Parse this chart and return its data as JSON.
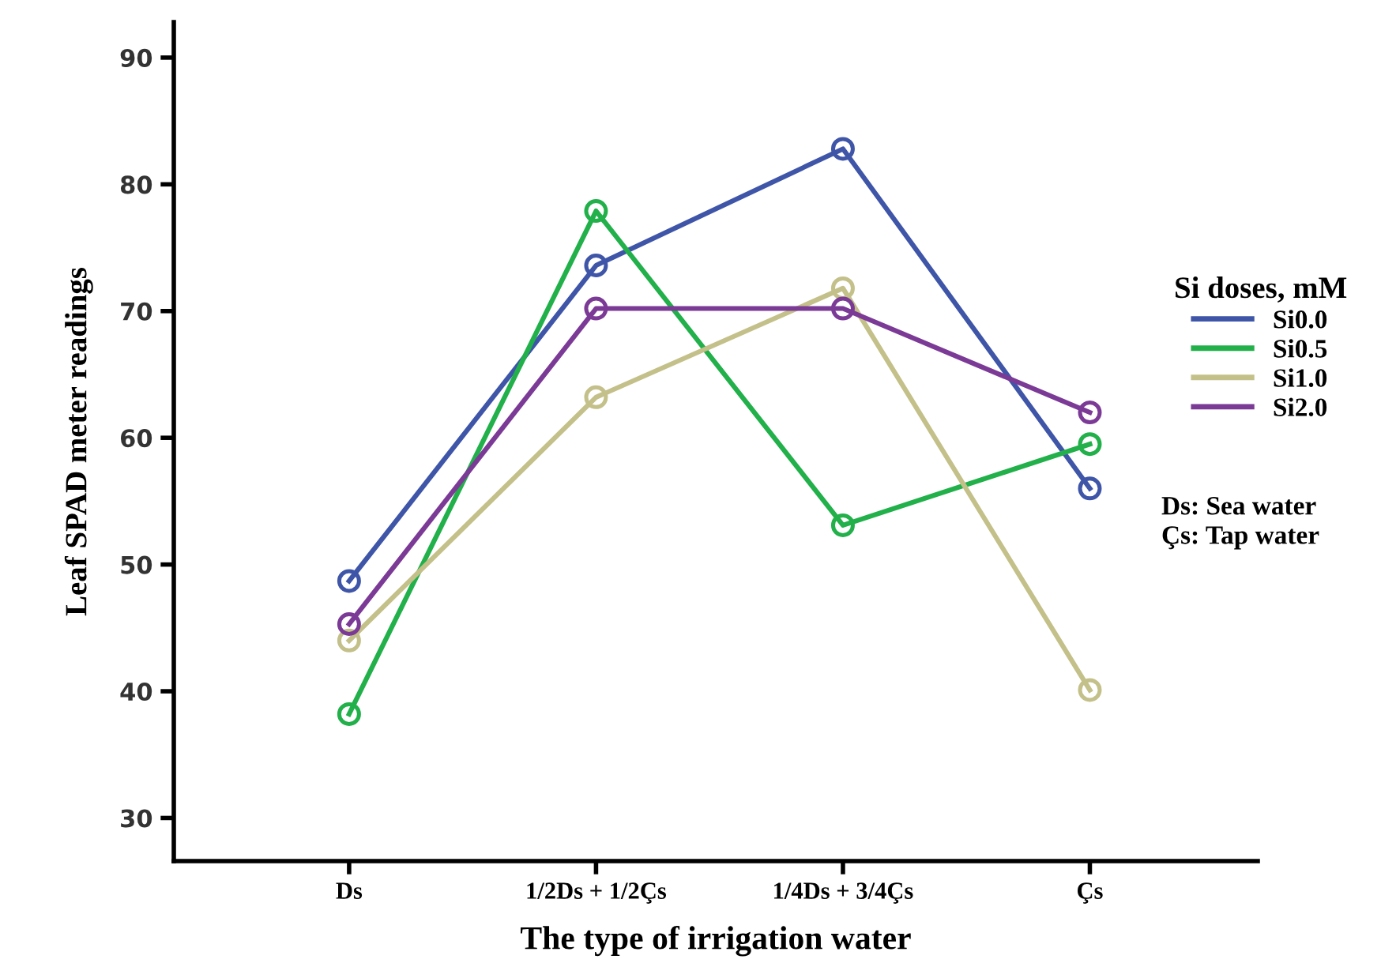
{
  "chart_data": {
    "type": "line",
    "xlabel": "The type of irrigation water",
    "ylabel": "Leaf SPAD meter readings",
    "legend_title": "Si doses, mM",
    "categories": [
      "Ds",
      "1/2Ds + 1/2Çs",
      "1/4Ds + 3/4Çs",
      "Çs"
    ],
    "series": [
      {
        "name": "Si0.0",
        "color": "#3e55a8",
        "values": [
          48.7,
          73.6,
          82.8,
          56.0
        ]
      },
      {
        "name": "Si0.5",
        "color": "#22b04a",
        "values": [
          38.2,
          77.9,
          53.1,
          59.5
        ]
      },
      {
        "name": "Si1.0",
        "color": "#c4c08a",
        "values": [
          44.0,
          63.2,
          71.8,
          40.1
        ]
      },
      {
        "name": "Si2.0",
        "color": "#7b3a96",
        "values": [
          45.3,
          70.2,
          70.2,
          62.0
        ]
      }
    ],
    "ylim": [
      26.6,
      92.8
    ],
    "yticks": [
      30,
      40,
      50,
      60,
      70,
      80,
      90
    ],
    "grid": false,
    "legend": "right",
    "marker": "circle",
    "line_style": "solid",
    "annotations": [
      "Ds: Sea water\nÇs: Tap water"
    ]
  }
}
